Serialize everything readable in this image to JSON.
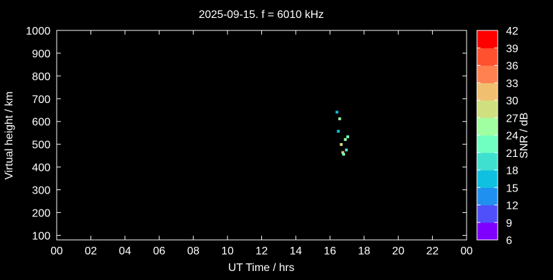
{
  "chart_data": {
    "type": "scatter",
    "title": "2025-09-15. f = 6010 kHz",
    "xlabel": "UT Time / hrs",
    "ylabel": "Virtual height / km",
    "xlim": [
      0,
      24
    ],
    "ylim": [
      80,
      1000
    ],
    "xticks": [
      "00",
      "02",
      "04",
      "06",
      "08",
      "10",
      "12",
      "14",
      "16",
      "18",
      "20",
      "22",
      "00"
    ],
    "yticks": [
      100,
      200,
      300,
      400,
      500,
      600,
      700,
      800,
      900,
      1000
    ],
    "grid": false,
    "colorbar": {
      "label": "SNR / dB",
      "range": [
        6,
        42
      ],
      "ticks": [
        6,
        9,
        12,
        15,
        18,
        21,
        24,
        27,
        30,
        33,
        36,
        39,
        42
      ],
      "colors": [
        "#8000ff",
        "#5050fa",
        "#2090f0",
        "#10c0e0",
        "#40e0d0",
        "#70ffc0",
        "#a0ffa0",
        "#d0e080",
        "#f0c070",
        "#ff8050",
        "#ff5030",
        "#ff0000"
      ]
    },
    "points": [
      {
        "x": 16.41,
        "y": 641,
        "snr": 16.5
      },
      {
        "x": 16.57,
        "y": 612,
        "snr": 25.5
      },
      {
        "x": 16.49,
        "y": 557,
        "snr": 16.5
      },
      {
        "x": 17.04,
        "y": 533,
        "snr": 22.5
      },
      {
        "x": 16.9,
        "y": 521,
        "snr": 25.5
      },
      {
        "x": 16.66,
        "y": 499,
        "snr": 28.5
      },
      {
        "x": 16.96,
        "y": 475,
        "snr": 19.5
      },
      {
        "x": 16.75,
        "y": 464,
        "snr": 31.5
      },
      {
        "x": 16.8,
        "y": 456,
        "snr": 22.5
      }
    ]
  }
}
